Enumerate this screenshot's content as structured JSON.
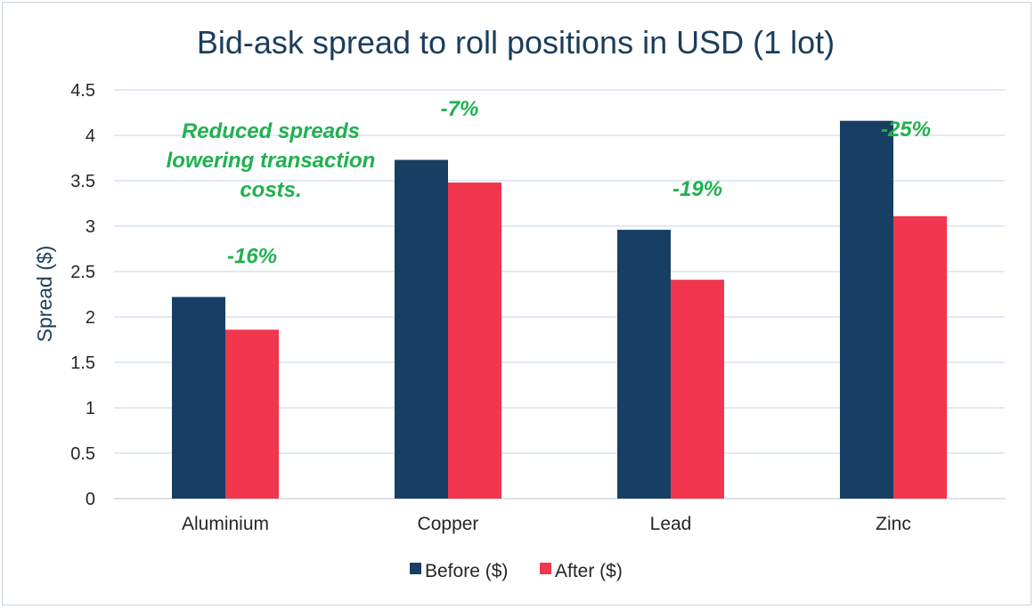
{
  "chart_data": {
    "type": "bar",
    "title": "Bid-ask spread to roll positions in USD (1 lot)",
    "xlabel": "",
    "ylabel": "Spread ($)",
    "ylim": [
      0,
      4.5
    ],
    "yticks": [
      "0",
      "0.5",
      "1",
      "1.5",
      "2",
      "2.5",
      "3",
      "3.5",
      "4",
      "4.5"
    ],
    "grid": true,
    "legend_position": "bottom",
    "categories": [
      "Aluminium",
      "Copper",
      "Lead",
      "Zinc"
    ],
    "series": [
      {
        "name": "Before ($)",
        "color": "#173f64",
        "values": [
          2.22,
          3.73,
          2.96,
          4.16
        ]
      },
      {
        "name": "After ($)",
        "color": "#f2364e",
        "values": [
          1.86,
          3.48,
          2.41,
          3.11
        ]
      }
    ],
    "bar_annotations": [
      "-16%",
      "-7%",
      "-19%",
      "-25%"
    ],
    "annotation_text": [
      "Reduced spreads",
      "lowering transaction",
      "costs."
    ],
    "annotation_color": "#1fb14f"
  }
}
